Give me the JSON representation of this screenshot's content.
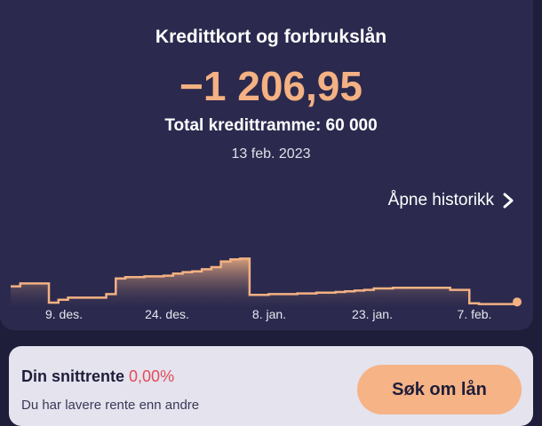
{
  "header": {
    "title": "Kredittkort og forbrukslån",
    "balance": "−1 206,95",
    "limit": "Total kredittramme: 60 000",
    "date": "13 feb. 2023",
    "history_link": "Åpne historikk"
  },
  "chart_data": {
    "type": "area",
    "title": "",
    "xlabel": "",
    "ylabel": "",
    "x_tick_labels": [
      "9. des.",
      "24. des.",
      "8. jan.",
      "23. jan.",
      "7. feb."
    ],
    "series": [
      {
        "values": [
          0.28,
          0.32,
          0.32,
          0.32,
          0.05,
          0.09,
          0.12,
          0.12,
          0.12,
          0.12,
          0.17,
          0.39,
          0.41,
          0.41,
          0.42,
          0.42,
          0.43,
          0.46,
          0.48,
          0.49,
          0.52,
          0.55,
          0.63,
          0.66,
          0.67,
          0.16,
          0.16,
          0.17,
          0.17,
          0.17,
          0.18,
          0.18,
          0.19,
          0.19,
          0.2,
          0.21,
          0.22,
          0.23,
          0.25,
          0.25,
          0.26,
          0.26,
          0.26,
          0.26,
          0.26,
          0.26,
          0.23,
          0.23,
          0.04,
          0.03,
          0.03,
          0.03,
          0.03,
          0.06
        ]
      }
    ],
    "colors": {
      "line": "#f4b183",
      "area_top": "#f4b183",
      "area_bottom": "#2b2a4e"
    },
    "grid": false
  },
  "rate_card": {
    "label": "Din snittrente",
    "value": "0,00%",
    "subtitle": "Du har lavere rente enn andre",
    "button": "Søk om lån"
  }
}
